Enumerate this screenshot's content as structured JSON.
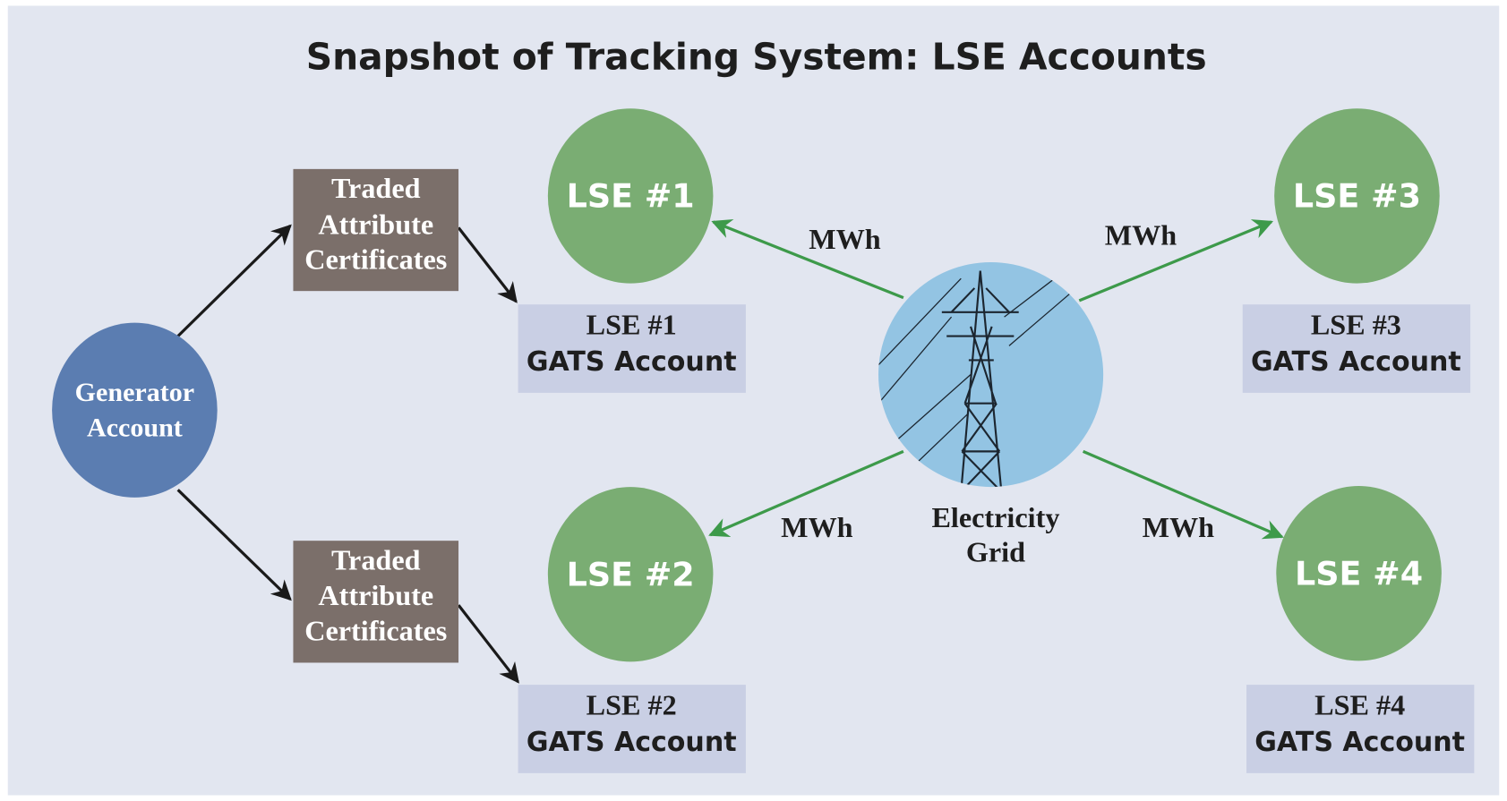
{
  "title": "Snapshot of Tracking System: LSE Accounts",
  "generator": {
    "label": [
      "Generator",
      "Account"
    ]
  },
  "certificates": [
    {
      "label": [
        "Traded",
        "Attribute",
        "Certificates"
      ]
    },
    {
      "label": [
        "Traded",
        "Attribute",
        "Certificates"
      ]
    }
  ],
  "lses": [
    {
      "label": "LSE #1",
      "account": [
        "LSE #1",
        "GATS Account"
      ]
    },
    {
      "label": "LSE #2",
      "account": [
        "LSE #2",
        "GATS Account"
      ]
    },
    {
      "label": "LSE #3",
      "account": [
        "LSE #3",
        "GATS Account"
      ]
    },
    {
      "label": "LSE #4",
      "account": [
        "LSE #4",
        "GATS Account"
      ]
    }
  ],
  "flows": [
    {
      "label": "MWh"
    },
    {
      "label": "MWh"
    },
    {
      "label": "MWh"
    },
    {
      "label": "MWh"
    }
  ],
  "grid": {
    "label": [
      "Electricity",
      "Grid"
    ]
  }
}
